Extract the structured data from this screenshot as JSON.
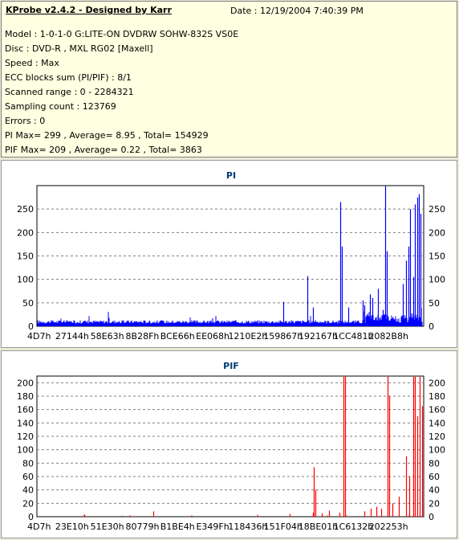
{
  "app_title": "KProbe v2.4.2 - Designed by Karr",
  "date_text": "Date : 12/19/2004 7:40:39 PM",
  "info_lines": [
    "Model : 1-0-1-0 G:LITE-ON DVDRW SOHW-832S  VS0E",
    "Disc : DVD-R , MXL RG02 [Maxell]",
    "Speed : Max",
    "ECC blocks sum (PI/PIF) : 8/1",
    "Scanned range : 0 - 2284321",
    "Sampling count : 123769",
    "Errors : 0",
    "PI Max= 299 , Average= 8.95 , Total= 154929",
    "PIF Max= 209 , Average= 0.22 , Total= 3863"
  ],
  "chart_data": [
    {
      "type": "bar",
      "title": "PI",
      "color": "#0000ff",
      "ylim": [
        0,
        300
      ],
      "yticks": [
        0,
        50,
        100,
        150,
        200,
        250
      ],
      "grid": true,
      "x_range": [
        0,
        2284321
      ],
      "xtick_labels": [
        "4D7h",
        "27144h",
        "58E63h",
        "8B28Fh",
        "BCE66h",
        "EE068h",
        "1210E2h",
        "159867h",
        "192167h",
        "1CC481h",
        "2082B8h"
      ],
      "baseline": 10,
      "spikes": [
        {
          "x": 0.7,
          "y": 52
        },
        {
          "x": 0.77,
          "y": 107
        },
        {
          "x": 0.786,
          "y": 40
        },
        {
          "x": 0.863,
          "y": 265
        },
        {
          "x": 0.867,
          "y": 170
        },
        {
          "x": 0.885,
          "y": 40
        },
        {
          "x": 0.926,
          "y": 55
        },
        {
          "x": 0.932,
          "y": 45
        },
        {
          "x": 0.948,
          "y": 68
        },
        {
          "x": 0.955,
          "y": 60
        },
        {
          "x": 0.969,
          "y": 80
        },
        {
          "x": 0.983,
          "y": 35
        },
        {
          "x": 0.991,
          "y": 299
        },
        {
          "x": 0.994,
          "y": 160
        },
        {
          "x": 1.041,
          "y": 90
        },
        {
          "x": 1.049,
          "y": 140
        },
        {
          "x": 1.057,
          "y": 170
        },
        {
          "x": 1.061,
          "y": 250
        },
        {
          "x": 1.07,
          "y": 105
        },
        {
          "x": 1.076,
          "y": 260
        },
        {
          "x": 1.082,
          "y": 275
        },
        {
          "x": 1.087,
          "y": 282
        },
        {
          "x": 1.091,
          "y": 240
        }
      ]
    },
    {
      "type": "bar",
      "title": "PIF",
      "color": "#ff0000",
      "ylim": [
        0,
        209
      ],
      "yticks": [
        0,
        20,
        40,
        60,
        80,
        100,
        120,
        140,
        160,
        180,
        200
      ],
      "grid": true,
      "x_range": [
        0,
        2284321
      ],
      "xtick_labels": [
        "4D7h",
        "23E10h",
        "51E30h",
        "80779h",
        "B1BE4h",
        "E349Fh",
        "118436h",
        "151F04h",
        "18BE01h",
        "1C6132h",
        "202253h"
      ],
      "spikes": [
        {
          "x": 0.135,
          "y": 3
        },
        {
          "x": 0.33,
          "y": 8
        },
        {
          "x": 0.72,
          "y": 4
        },
        {
          "x": 0.785,
          "y": 6
        },
        {
          "x": 0.788,
          "y": 74
        },
        {
          "x": 0.792,
          "y": 40
        },
        {
          "x": 0.81,
          "y": 5
        },
        {
          "x": 0.83,
          "y": 9
        },
        {
          "x": 0.86,
          "y": 6
        },
        {
          "x": 0.872,
          "y": 209
        },
        {
          "x": 0.876,
          "y": 209
        },
        {
          "x": 0.93,
          "y": 8
        },
        {
          "x": 0.95,
          "y": 12
        },
        {
          "x": 0.965,
          "y": 15
        },
        {
          "x": 0.98,
          "y": 12
        },
        {
          "x": 0.998,
          "y": 209
        },
        {
          "x": 1.002,
          "y": 180
        },
        {
          "x": 1.01,
          "y": 20
        },
        {
          "x": 1.03,
          "y": 30
        },
        {
          "x": 1.05,
          "y": 90
        },
        {
          "x": 1.06,
          "y": 60
        },
        {
          "x": 1.07,
          "y": 209
        },
        {
          "x": 1.075,
          "y": 209
        },
        {
          "x": 1.082,
          "y": 150
        },
        {
          "x": 1.088,
          "y": 209
        },
        {
          "x": 1.095,
          "y": 165
        }
      ]
    }
  ]
}
